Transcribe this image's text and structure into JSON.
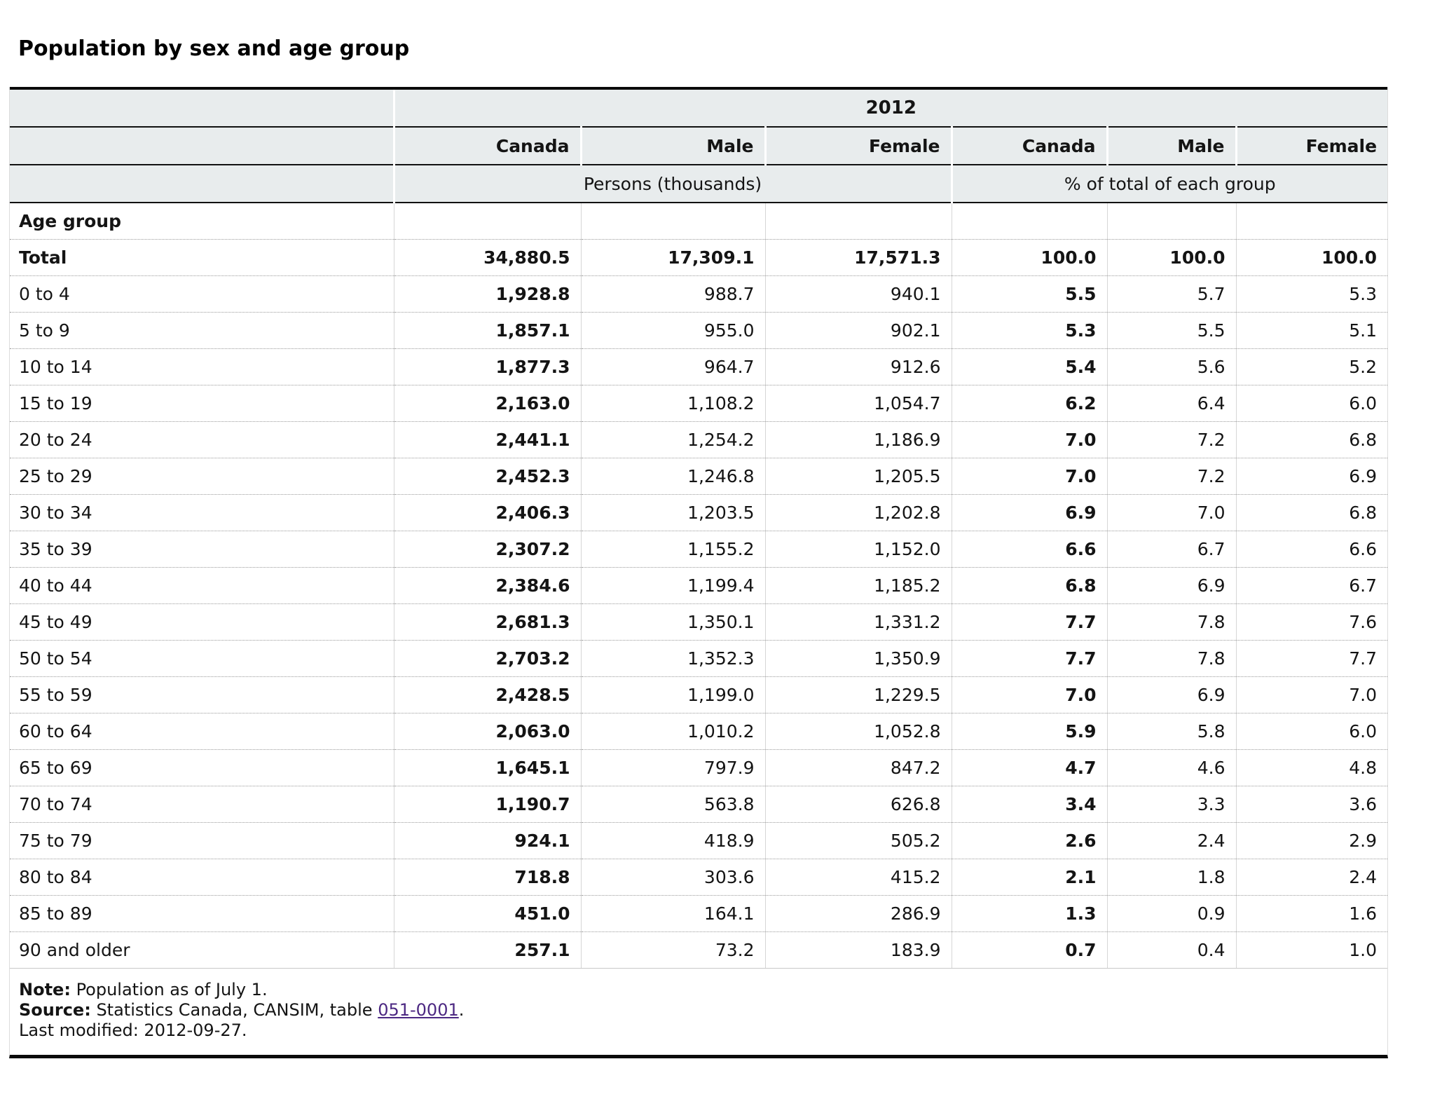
{
  "page_title": "Population by sex and age group",
  "table": {
    "year_header": "2012",
    "stub_header": "Age group",
    "column_headers": [
      "Canada",
      "Male",
      "Female",
      "Canada",
      "Male",
      "Female"
    ],
    "group_headers": [
      "Persons (thousands)",
      "% of total of each group"
    ],
    "rows": [
      {
        "label": "Total",
        "bold": true,
        "persons": [
          "34,880.5",
          "17,309.1",
          "17,571.3"
        ],
        "percent": [
          "100.0",
          "100.0",
          "100.0"
        ]
      },
      {
        "label": "0 to 4",
        "persons": [
          "1,928.8",
          "988.7",
          "940.1"
        ],
        "percent": [
          "5.5",
          "5.7",
          "5.3"
        ]
      },
      {
        "label": "5 to 9",
        "persons": [
          "1,857.1",
          "955.0",
          "902.1"
        ],
        "percent": [
          "5.3",
          "5.5",
          "5.1"
        ]
      },
      {
        "label": "10 to 14",
        "persons": [
          "1,877.3",
          "964.7",
          "912.6"
        ],
        "percent": [
          "5.4",
          "5.6",
          "5.2"
        ]
      },
      {
        "label": "15 to 19",
        "persons": [
          "2,163.0",
          "1,108.2",
          "1,054.7"
        ],
        "percent": [
          "6.2",
          "6.4",
          "6.0"
        ]
      },
      {
        "label": "20 to 24",
        "persons": [
          "2,441.1",
          "1,254.2",
          "1,186.9"
        ],
        "percent": [
          "7.0",
          "7.2",
          "6.8"
        ]
      },
      {
        "label": "25 to 29",
        "persons": [
          "2,452.3",
          "1,246.8",
          "1,205.5"
        ],
        "percent": [
          "7.0",
          "7.2",
          "6.9"
        ]
      },
      {
        "label": "30 to 34",
        "persons": [
          "2,406.3",
          "1,203.5",
          "1,202.8"
        ],
        "percent": [
          "6.9",
          "7.0",
          "6.8"
        ]
      },
      {
        "label": "35 to 39",
        "persons": [
          "2,307.2",
          "1,155.2",
          "1,152.0"
        ],
        "percent": [
          "6.6",
          "6.7",
          "6.6"
        ]
      },
      {
        "label": "40 to 44",
        "persons": [
          "2,384.6",
          "1,199.4",
          "1,185.2"
        ],
        "percent": [
          "6.8",
          "6.9",
          "6.7"
        ]
      },
      {
        "label": "45 to 49",
        "persons": [
          "2,681.3",
          "1,350.1",
          "1,331.2"
        ],
        "percent": [
          "7.7",
          "7.8",
          "7.6"
        ]
      },
      {
        "label": "50 to 54",
        "persons": [
          "2,703.2",
          "1,352.3",
          "1,350.9"
        ],
        "percent": [
          "7.7",
          "7.8",
          "7.7"
        ]
      },
      {
        "label": "55 to 59",
        "persons": [
          "2,428.5",
          "1,199.0",
          "1,229.5"
        ],
        "percent": [
          "7.0",
          "6.9",
          "7.0"
        ]
      },
      {
        "label": "60 to 64",
        "persons": [
          "2,063.0",
          "1,010.2",
          "1,052.8"
        ],
        "percent": [
          "5.9",
          "5.8",
          "6.0"
        ]
      },
      {
        "label": "65 to 69",
        "persons": [
          "1,645.1",
          "797.9",
          "847.2"
        ],
        "percent": [
          "4.7",
          "4.6",
          "4.8"
        ]
      },
      {
        "label": "70 to 74",
        "persons": [
          "1,190.7",
          "563.8",
          "626.8"
        ],
        "percent": [
          "3.4",
          "3.3",
          "3.6"
        ]
      },
      {
        "label": "75 to 79",
        "persons": [
          "924.1",
          "418.9",
          "505.2"
        ],
        "percent": [
          "2.6",
          "2.4",
          "2.9"
        ]
      },
      {
        "label": "80 to 84",
        "persons": [
          "718.8",
          "303.6",
          "415.2"
        ],
        "percent": [
          "2.1",
          "1.8",
          "2.4"
        ]
      },
      {
        "label": "85 to 89",
        "persons": [
          "451.0",
          "164.1",
          "286.9"
        ],
        "percent": [
          "1.3",
          "0.9",
          "1.6"
        ]
      },
      {
        "label": "90 and older",
        "persons": [
          "257.1",
          "73.2",
          "183.9"
        ],
        "percent": [
          "0.7",
          "0.4",
          "1.0"
        ]
      }
    ]
  },
  "footer": {
    "note": {
      "label": "Note:",
      "text": "Population as of July 1."
    },
    "source": {
      "label": "Source:",
      "prefix": "Statistics Canada, CANSIM, table ",
      "link": "051-0001",
      "suffix": "."
    },
    "last_modified": "Last modified: 2012-09-27."
  },
  "colors": {
    "header_bg": "#e8eced",
    "border_black": "#0a0a0a",
    "link": "#4c2882",
    "text": "#141414"
  }
}
